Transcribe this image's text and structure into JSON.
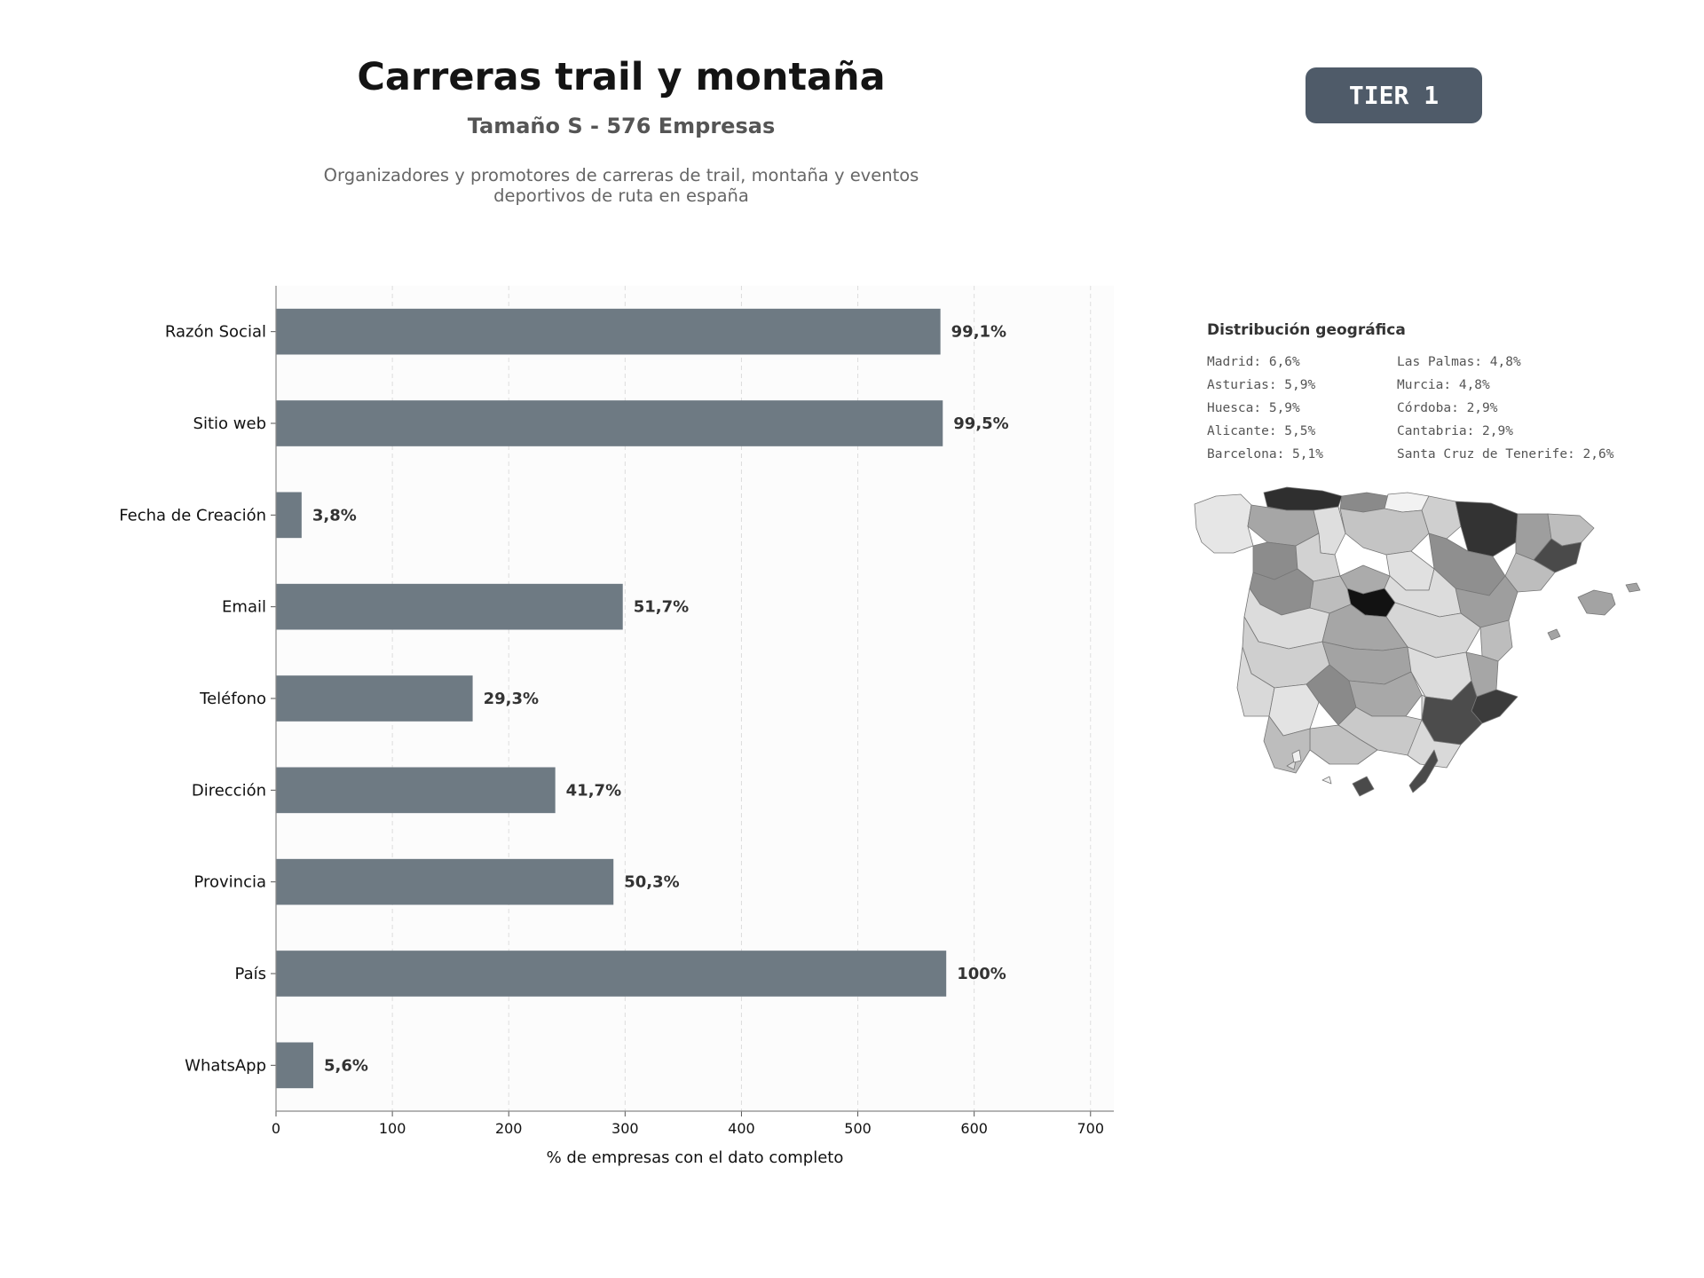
{
  "header": {
    "title": "Carreras trail y montaña",
    "subtitle": "Tamaño S - 576 Empresas",
    "description_line1": "Organizadores y promotores de carreras de trail, montaña y eventos",
    "description_line2": "deportivos de ruta en españa",
    "tier_label": "TIER 1"
  },
  "chart_data": {
    "type": "bar",
    "orientation": "horizontal",
    "categories": [
      "Razón Social",
      "Sitio web",
      "Fecha de Creación",
      "Email",
      "Teléfono",
      "Dirección",
      "Provincia",
      "País",
      "WhatsApp"
    ],
    "values": [
      571,
      573,
      22,
      298,
      169,
      240,
      290,
      576,
      32
    ],
    "data_labels": [
      "99,1%",
      "99,5%",
      "3,8%",
      "51,7%",
      "29,3%",
      "41,7%",
      "50,3%",
      "100%",
      "5,6%"
    ],
    "xlabel": "% de empresas con el dato completo",
    "xlim": [
      0,
      720
    ],
    "xticks": [
      0,
      100,
      200,
      300,
      400,
      500,
      600,
      700
    ],
    "grid": "vertical dashed",
    "bar_color": "#6e7a83"
  },
  "geo": {
    "title": "Distribución geográfica",
    "items": [
      "Madrid: 6,6%",
      "Asturias: 5,9%",
      "Huesca: 5,9%",
      "Alicante: 5,5%",
      "Barcelona: 5,1%",
      "Las Palmas: 4,8%",
      "Murcia: 4,8%",
      "Córdoba: 2,9%",
      "Cantabria: 2,9%",
      "Santa Cruz de Tenerife: 2,6%"
    ]
  }
}
